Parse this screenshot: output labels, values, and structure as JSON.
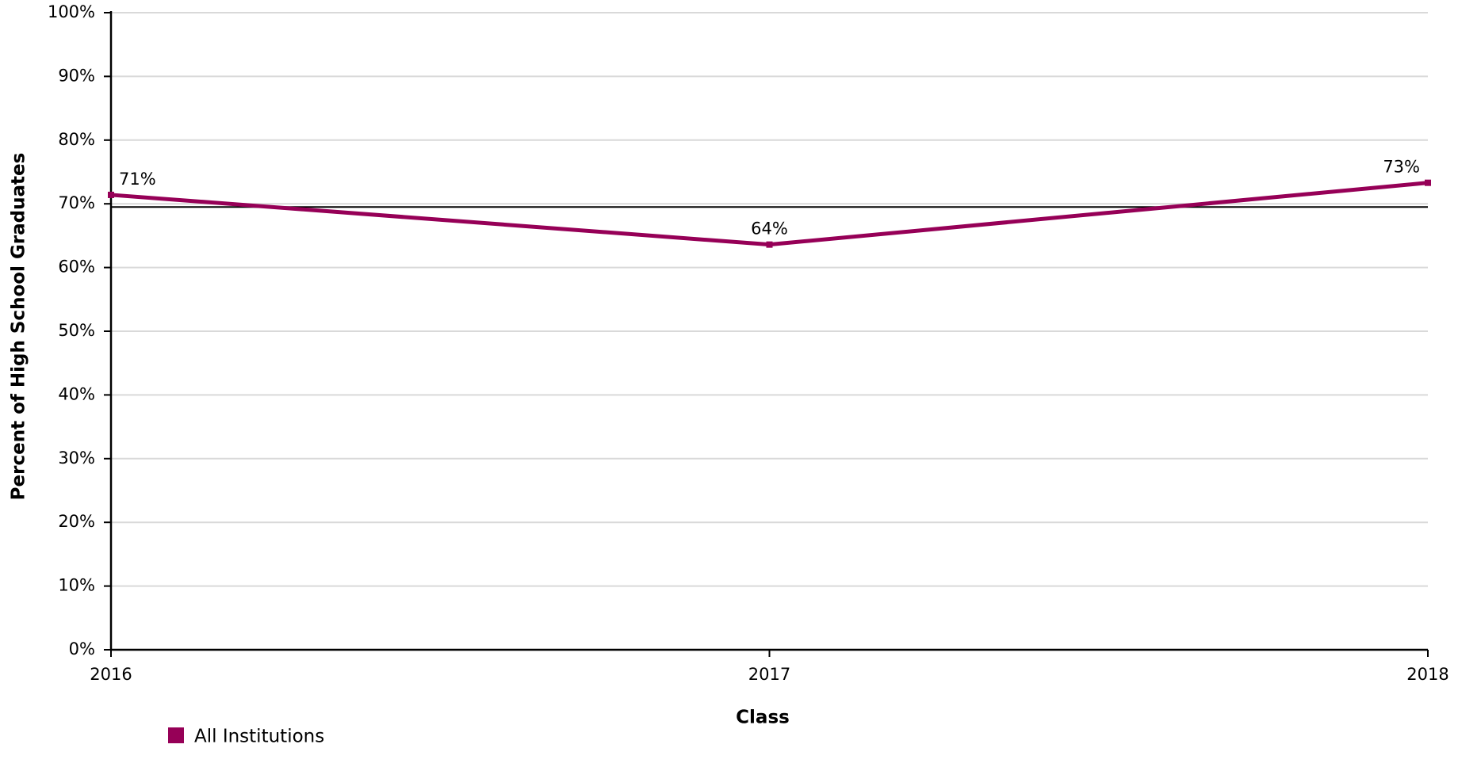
{
  "chart_data": {
    "type": "line",
    "x_label": "Class",
    "y_label": "Percent of High School Graduates",
    "x": [
      2016,
      2017,
      2018
    ],
    "xlim": [
      2016,
      2018
    ],
    "xticks": [
      2016,
      2017,
      2018
    ],
    "ylim": [
      0,
      100
    ],
    "yticks": [
      {
        "value": 0,
        "label": "0%"
      },
      {
        "value": 10,
        "label": "10%"
      },
      {
        "value": 20,
        "label": "20%"
      },
      {
        "value": 30,
        "label": "30%"
      },
      {
        "value": 40,
        "label": "40%"
      },
      {
        "value": 50,
        "label": "50%"
      },
      {
        "value": 60,
        "label": "60%"
      },
      {
        "value": 70,
        "label": "70%"
      },
      {
        "value": 80,
        "label": "80%"
      },
      {
        "value": 90,
        "label": "90%"
      },
      {
        "value": 100,
        "label": "100%"
      }
    ],
    "grid": true,
    "reference_line": {
      "value": 69.5,
      "color": "#000000"
    },
    "legend": "bottom-left",
    "series": [
      {
        "name": "All Institutions",
        "color": "#960057",
        "values": [
          71.4,
          63.6,
          73.3
        ],
        "value_labels": [
          "71%",
          "64%",
          "73%"
        ]
      }
    ]
  }
}
